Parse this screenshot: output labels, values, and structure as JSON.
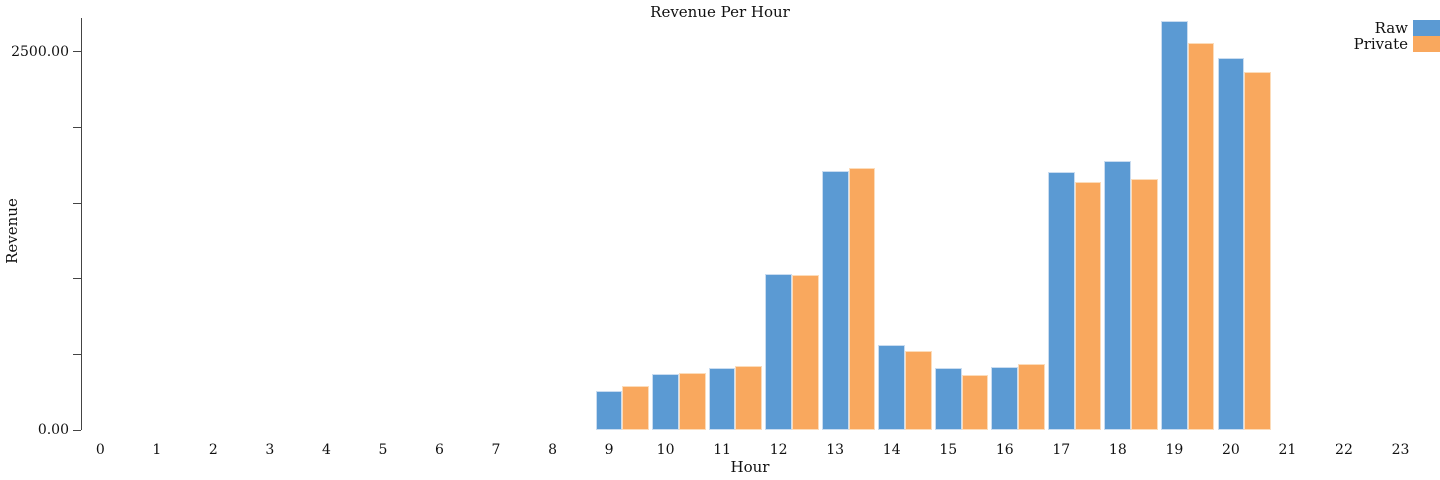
{
  "chart_data": {
    "type": "bar",
    "title": "Revenue Per Hour",
    "xlabel": "Hour",
    "ylabel": "Revenue",
    "categories": [
      0,
      1,
      2,
      3,
      4,
      5,
      6,
      7,
      8,
      9,
      10,
      11,
      12,
      13,
      14,
      15,
      16,
      17,
      18,
      19,
      20,
      21,
      22,
      23
    ],
    "series": [
      {
        "name": "Raw",
        "color": "#5b9ad3",
        "edge_color": "#c9dcf0",
        "values": [
          null,
          null,
          null,
          null,
          null,
          null,
          null,
          null,
          null,
          255,
          367,
          408,
          1029,
          1712,
          562,
          410,
          418,
          1708,
          1780,
          2705,
          2457,
          null,
          null,
          null
        ]
      },
      {
        "name": "Private",
        "color": "#f9a85e",
        "edge_color": "#fcdcba",
        "values": [
          null,
          null,
          null,
          null,
          null,
          null,
          null,
          null,
          null,
          294,
          376,
          424,
          1024,
          1734,
          522,
          366,
          433,
          1641,
          1660,
          2557,
          2369,
          null,
          null,
          null
        ]
      }
    ],
    "y_ticks": [
      {
        "value": 0,
        "label": "0.00"
      },
      {
        "value": 500,
        "label": ""
      },
      {
        "value": 1000,
        "label": ""
      },
      {
        "value": 1500,
        "label": ""
      },
      {
        "value": 2000,
        "label": ""
      },
      {
        "value": 2500,
        "label": "2500.00"
      }
    ],
    "ylim": [
      0,
      2723
    ],
    "xlim_ticks": [
      0,
      23
    ],
    "grid": false,
    "legend_position": "top-right",
    "axis_color": "#444444"
  }
}
